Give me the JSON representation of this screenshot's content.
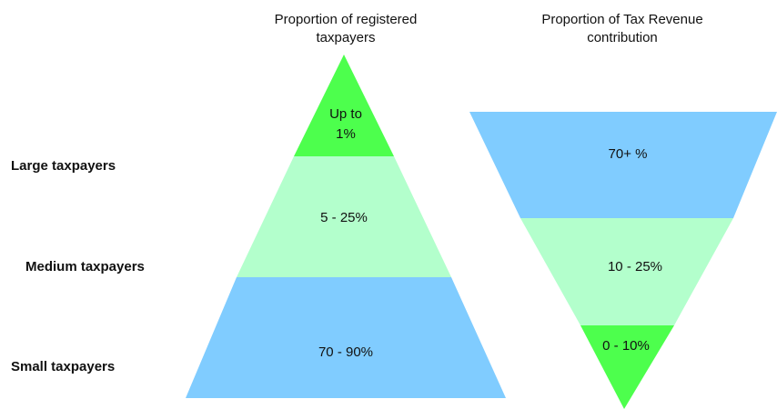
{
  "row_labels": [
    "Large taxpayers",
    "Medium taxpayers",
    "Small taxpayers"
  ],
  "left_pyramid": {
    "title": [
      "Proportion of registered",
      "taxpayers"
    ],
    "segments": [
      [
        "Up to",
        "1%"
      ],
      [
        "5 - 25%"
      ],
      [
        "70 - 90%"
      ]
    ]
  },
  "right_pyramid": {
    "title": [
      "Proportion of Tax Revenue",
      "contribution"
    ],
    "segments": [
      [
        "70+ %"
      ],
      [
        "10 - 25%"
      ],
      [
        "0 - 10%"
      ]
    ]
  }
}
